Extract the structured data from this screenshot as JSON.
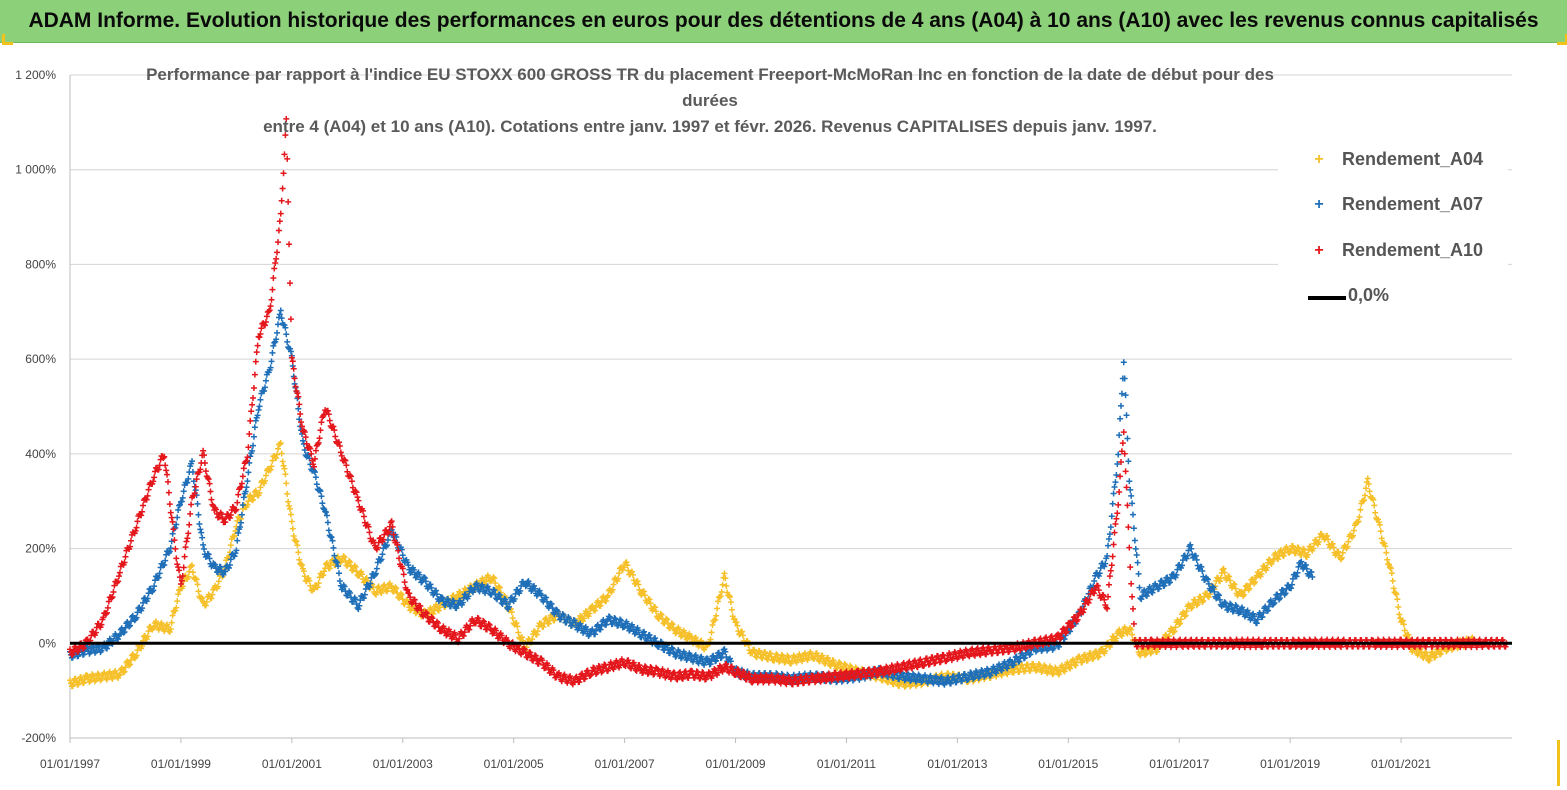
{
  "header": {
    "title": "ADAM Informe. Evolution historique des performances en euros pour des détentions de 4 ans (A04) à 10 ans (A10) avec les revenus connus capitalisés"
  },
  "chart_data": {
    "type": "scatter",
    "title_line1": "Performance par rapport à l'indice EU STOXX 600 GROSS TR  du placement Freeport-McMoRan Inc en fonction de la date de début pour des durées",
    "title_line2": "entre 4 (A04) et 10 ans (A10). Cotations entre janv. 1997 et févr. 2026. Revenus CAPITALISES depuis janv. 1997.",
    "xlabel": "",
    "ylabel": "",
    "x_range": [
      "1997-01-01",
      "2022-12-31"
    ],
    "ylim": [
      -200,
      1200
    ],
    "y_ticks": [
      "-200%",
      "0%",
      "200%",
      "400%",
      "600%",
      "800%",
      "1 000%",
      "1 200%"
    ],
    "y_tick_values": [
      -200,
      0,
      200,
      400,
      600,
      800,
      1000,
      1200
    ],
    "x_ticks": [
      "01/01/1997",
      "01/01/1999",
      "01/01/2001",
      "01/01/2003",
      "01/01/2005",
      "01/01/2007",
      "01/01/2009",
      "01/01/2011",
      "01/01/2013",
      "01/01/2015",
      "01/01/2017",
      "01/01/2019",
      "01/01/2021"
    ],
    "x_tick_values": [
      1997,
      1999,
      2001,
      2003,
      2005,
      2007,
      2009,
      2011,
      2013,
      2015,
      2017,
      2019,
      2021
    ],
    "grid": true,
    "legend_position": "top-right",
    "zero_line_label": "0,0%",
    "series": [
      {
        "name": "Rendement_A04",
        "color": "#f5c02a",
        "points": [
          [
            1997.0,
            -85
          ],
          [
            1997.3,
            -75
          ],
          [
            1997.6,
            -70
          ],
          [
            1997.9,
            -65
          ],
          [
            1998.2,
            -20
          ],
          [
            1998.5,
            40
          ],
          [
            1998.8,
            30
          ],
          [
            1999.0,
            120
          ],
          [
            1999.2,
            160
          ],
          [
            1999.4,
            80
          ],
          [
            1999.6,
            110
          ],
          [
            1999.8,
            160
          ],
          [
            2000.0,
            250
          ],
          [
            2000.2,
            300
          ],
          [
            2000.4,
            320
          ],
          [
            2000.6,
            370
          ],
          [
            2000.8,
            420
          ],
          [
            2001.0,
            250
          ],
          [
            2001.2,
            150
          ],
          [
            2001.4,
            110
          ],
          [
            2001.6,
            160
          ],
          [
            2001.9,
            180
          ],
          [
            2002.2,
            150
          ],
          [
            2002.5,
            110
          ],
          [
            2002.8,
            120
          ],
          [
            2003.1,
            80
          ],
          [
            2003.4,
            60
          ],
          [
            2003.7,
            80
          ],
          [
            2004.0,
            100
          ],
          [
            2004.3,
            120
          ],
          [
            2004.6,
            140
          ],
          [
            2004.9,
            80
          ],
          [
            2005.2,
            -10
          ],
          [
            2005.5,
            40
          ],
          [
            2005.8,
            60
          ],
          [
            2006.1,
            40
          ],
          [
            2006.4,
            70
          ],
          [
            2006.7,
            100
          ],
          [
            2007.0,
            170
          ],
          [
            2007.3,
            110
          ],
          [
            2007.6,
            60
          ],
          [
            2007.9,
            30
          ],
          [
            2008.2,
            10
          ],
          [
            2008.5,
            -10
          ],
          [
            2008.8,
            140
          ],
          [
            2009.0,
            40
          ],
          [
            2009.3,
            -20
          ],
          [
            2009.7,
            -30
          ],
          [
            2010.0,
            -35
          ],
          [
            2010.4,
            -25
          ],
          [
            2010.8,
            -45
          ],
          [
            2011.2,
            -60
          ],
          [
            2011.6,
            -70
          ],
          [
            2012.0,
            -85
          ],
          [
            2012.4,
            -80
          ],
          [
            2012.8,
            -70
          ],
          [
            2013.2,
            -75
          ],
          [
            2013.6,
            -65
          ],
          [
            2014.0,
            -55
          ],
          [
            2014.4,
            -50
          ],
          [
            2014.8,
            -60
          ],
          [
            2015.2,
            -35
          ],
          [
            2015.6,
            -20
          ],
          [
            2015.9,
            20
          ],
          [
            2016.1,
            30
          ],
          [
            2016.3,
            -20
          ],
          [
            2016.6,
            -10
          ],
          [
            2016.9,
            30
          ],
          [
            2017.2,
            80
          ],
          [
            2017.5,
            100
          ],
          [
            2017.8,
            150
          ],
          [
            2018.1,
            100
          ],
          [
            2018.4,
            140
          ],
          [
            2018.7,
            180
          ],
          [
            2019.0,
            200
          ],
          [
            2019.3,
            190
          ],
          [
            2019.6,
            230
          ],
          [
            2019.9,
            180
          ],
          [
            2020.2,
            250
          ],
          [
            2020.4,
            340
          ],
          [
            2020.6,
            250
          ],
          [
            2020.8,
            160
          ],
          [
            2021.0,
            50
          ],
          [
            2021.2,
            -10
          ],
          [
            2021.5,
            -30
          ],
          [
            2021.8,
            -10
          ],
          [
            2022.1,
            0
          ],
          [
            2022.3,
            5
          ]
        ]
      },
      {
        "name": "Rendement_A07",
        "color": "#1f6fb8",
        "points": [
          [
            1997.0,
            -25
          ],
          [
            1997.3,
            -15
          ],
          [
            1997.6,
            -10
          ],
          [
            1997.9,
            20
          ],
          [
            1998.2,
            60
          ],
          [
            1998.5,
            120
          ],
          [
            1998.8,
            200
          ],
          [
            1999.0,
            300
          ],
          [
            1999.2,
            380
          ],
          [
            1999.4,
            200
          ],
          [
            1999.6,
            160
          ],
          [
            1999.8,
            150
          ],
          [
            2000.0,
            200
          ],
          [
            2000.2,
            350
          ],
          [
            2000.4,
            500
          ],
          [
            2000.6,
            580
          ],
          [
            2000.8,
            700
          ],
          [
            2001.0,
            600
          ],
          [
            2001.2,
            420
          ],
          [
            2001.4,
            360
          ],
          [
            2001.6,
            280
          ],
          [
            2001.9,
            120
          ],
          [
            2002.2,
            80
          ],
          [
            2002.5,
            150
          ],
          [
            2002.8,
            240
          ],
          [
            2003.1,
            160
          ],
          [
            2003.4,
            130
          ],
          [
            2003.7,
            90
          ],
          [
            2004.0,
            80
          ],
          [
            2004.3,
            120
          ],
          [
            2004.6,
            110
          ],
          [
            2004.9,
            80
          ],
          [
            2005.2,
            130
          ],
          [
            2005.5,
            100
          ],
          [
            2005.8,
            60
          ],
          [
            2006.1,
            40
          ],
          [
            2006.4,
            20
          ],
          [
            2006.7,
            50
          ],
          [
            2007.0,
            40
          ],
          [
            2007.3,
            20
          ],
          [
            2007.6,
            0
          ],
          [
            2007.9,
            -20
          ],
          [
            2008.2,
            -30
          ],
          [
            2008.5,
            -40
          ],
          [
            2008.8,
            -20
          ],
          [
            2009.0,
            -60
          ],
          [
            2009.3,
            -70
          ],
          [
            2009.7,
            -70
          ],
          [
            2010.0,
            -75
          ],
          [
            2010.4,
            -70
          ],
          [
            2010.8,
            -75
          ],
          [
            2011.2,
            -70
          ],
          [
            2011.6,
            -60
          ],
          [
            2012.0,
            -70
          ],
          [
            2012.4,
            -75
          ],
          [
            2012.8,
            -80
          ],
          [
            2013.2,
            -70
          ],
          [
            2013.6,
            -60
          ],
          [
            2014.0,
            -40
          ],
          [
            2014.4,
            -10
          ],
          [
            2014.8,
            -5
          ],
          [
            2015.2,
            60
          ],
          [
            2015.5,
            140
          ],
          [
            2015.7,
            180
          ],
          [
            2015.9,
            400
          ],
          [
            2016.0,
            600
          ],
          [
            2016.1,
            350
          ],
          [
            2016.3,
            100
          ],
          [
            2016.6,
            120
          ],
          [
            2016.9,
            140
          ],
          [
            2017.2,
            200
          ],
          [
            2017.5,
            130
          ],
          [
            2017.8,
            80
          ],
          [
            2018.1,
            70
          ],
          [
            2018.4,
            50
          ],
          [
            2018.7,
            90
          ],
          [
            2019.0,
            120
          ],
          [
            2019.2,
            170
          ],
          [
            2019.4,
            140
          ]
        ]
      },
      {
        "name": "Rendement_A10",
        "color": "#e3171c",
        "points": [
          [
            1997.0,
            -20
          ],
          [
            1997.3,
            0
          ],
          [
            1997.6,
            50
          ],
          [
            1997.9,
            150
          ],
          [
            1998.2,
            250
          ],
          [
            1998.5,
            350
          ],
          [
            1998.7,
            400
          ],
          [
            1998.9,
            200
          ],
          [
            1999.0,
            120
          ],
          [
            1999.2,
            300
          ],
          [
            1999.4,
            400
          ],
          [
            1999.6,
            280
          ],
          [
            1999.8,
            260
          ],
          [
            2000.0,
            290
          ],
          [
            2000.2,
            400
          ],
          [
            2000.4,
            650
          ],
          [
            2000.6,
            700
          ],
          [
            2000.8,
            900
          ],
          [
            2000.9,
            1100
          ],
          [
            2001.0,
            600
          ],
          [
            2001.2,
            450
          ],
          [
            2001.4,
            380
          ],
          [
            2001.6,
            500
          ],
          [
            2001.9,
            400
          ],
          [
            2002.2,
            300
          ],
          [
            2002.5,
            200
          ],
          [
            2002.8,
            250
          ],
          [
            2003.1,
            100
          ],
          [
            2003.4,
            60
          ],
          [
            2003.7,
            30
          ],
          [
            2004.0,
            10
          ],
          [
            2004.3,
            50
          ],
          [
            2004.6,
            30
          ],
          [
            2004.9,
            0
          ],
          [
            2005.2,
            -20
          ],
          [
            2005.5,
            -40
          ],
          [
            2005.8,
            -70
          ],
          [
            2006.1,
            -80
          ],
          [
            2006.4,
            -60
          ],
          [
            2006.7,
            -50
          ],
          [
            2007.0,
            -40
          ],
          [
            2007.3,
            -55
          ],
          [
            2007.6,
            -60
          ],
          [
            2007.9,
            -70
          ],
          [
            2008.2,
            -65
          ],
          [
            2008.5,
            -70
          ],
          [
            2008.8,
            -50
          ],
          [
            2009.0,
            -60
          ],
          [
            2009.3,
            -75
          ],
          [
            2009.7,
            -75
          ],
          [
            2010.0,
            -80
          ],
          [
            2010.4,
            -75
          ],
          [
            2010.8,
            -70
          ],
          [
            2011.2,
            -65
          ],
          [
            2011.6,
            -60
          ],
          [
            2012.0,
            -50
          ],
          [
            2012.4,
            -40
          ],
          [
            2012.8,
            -30
          ],
          [
            2013.2,
            -20
          ],
          [
            2013.6,
            -15
          ],
          [
            2014.0,
            -10
          ],
          [
            2014.4,
            0
          ],
          [
            2014.8,
            10
          ],
          [
            2015.2,
            60
          ],
          [
            2015.5,
            120
          ],
          [
            2015.7,
            80
          ],
          [
            2015.9,
            300
          ],
          [
            2016.0,
            450
          ],
          [
            2016.1,
            200
          ],
          [
            2016.2,
            0
          ],
          [
            2016.5,
            0
          ],
          [
            2017.0,
            0
          ],
          [
            2017.5,
            0
          ],
          [
            2018.0,
            0
          ],
          [
            2018.5,
            0
          ],
          [
            2019.0,
            0
          ],
          [
            2019.5,
            0
          ],
          [
            2020.0,
            0
          ],
          [
            2020.5,
            0
          ],
          [
            2021.0,
            0
          ],
          [
            2021.5,
            0
          ],
          [
            2022.0,
            0
          ],
          [
            2022.5,
            0
          ],
          [
            2022.9,
            0
          ]
        ]
      }
    ]
  }
}
